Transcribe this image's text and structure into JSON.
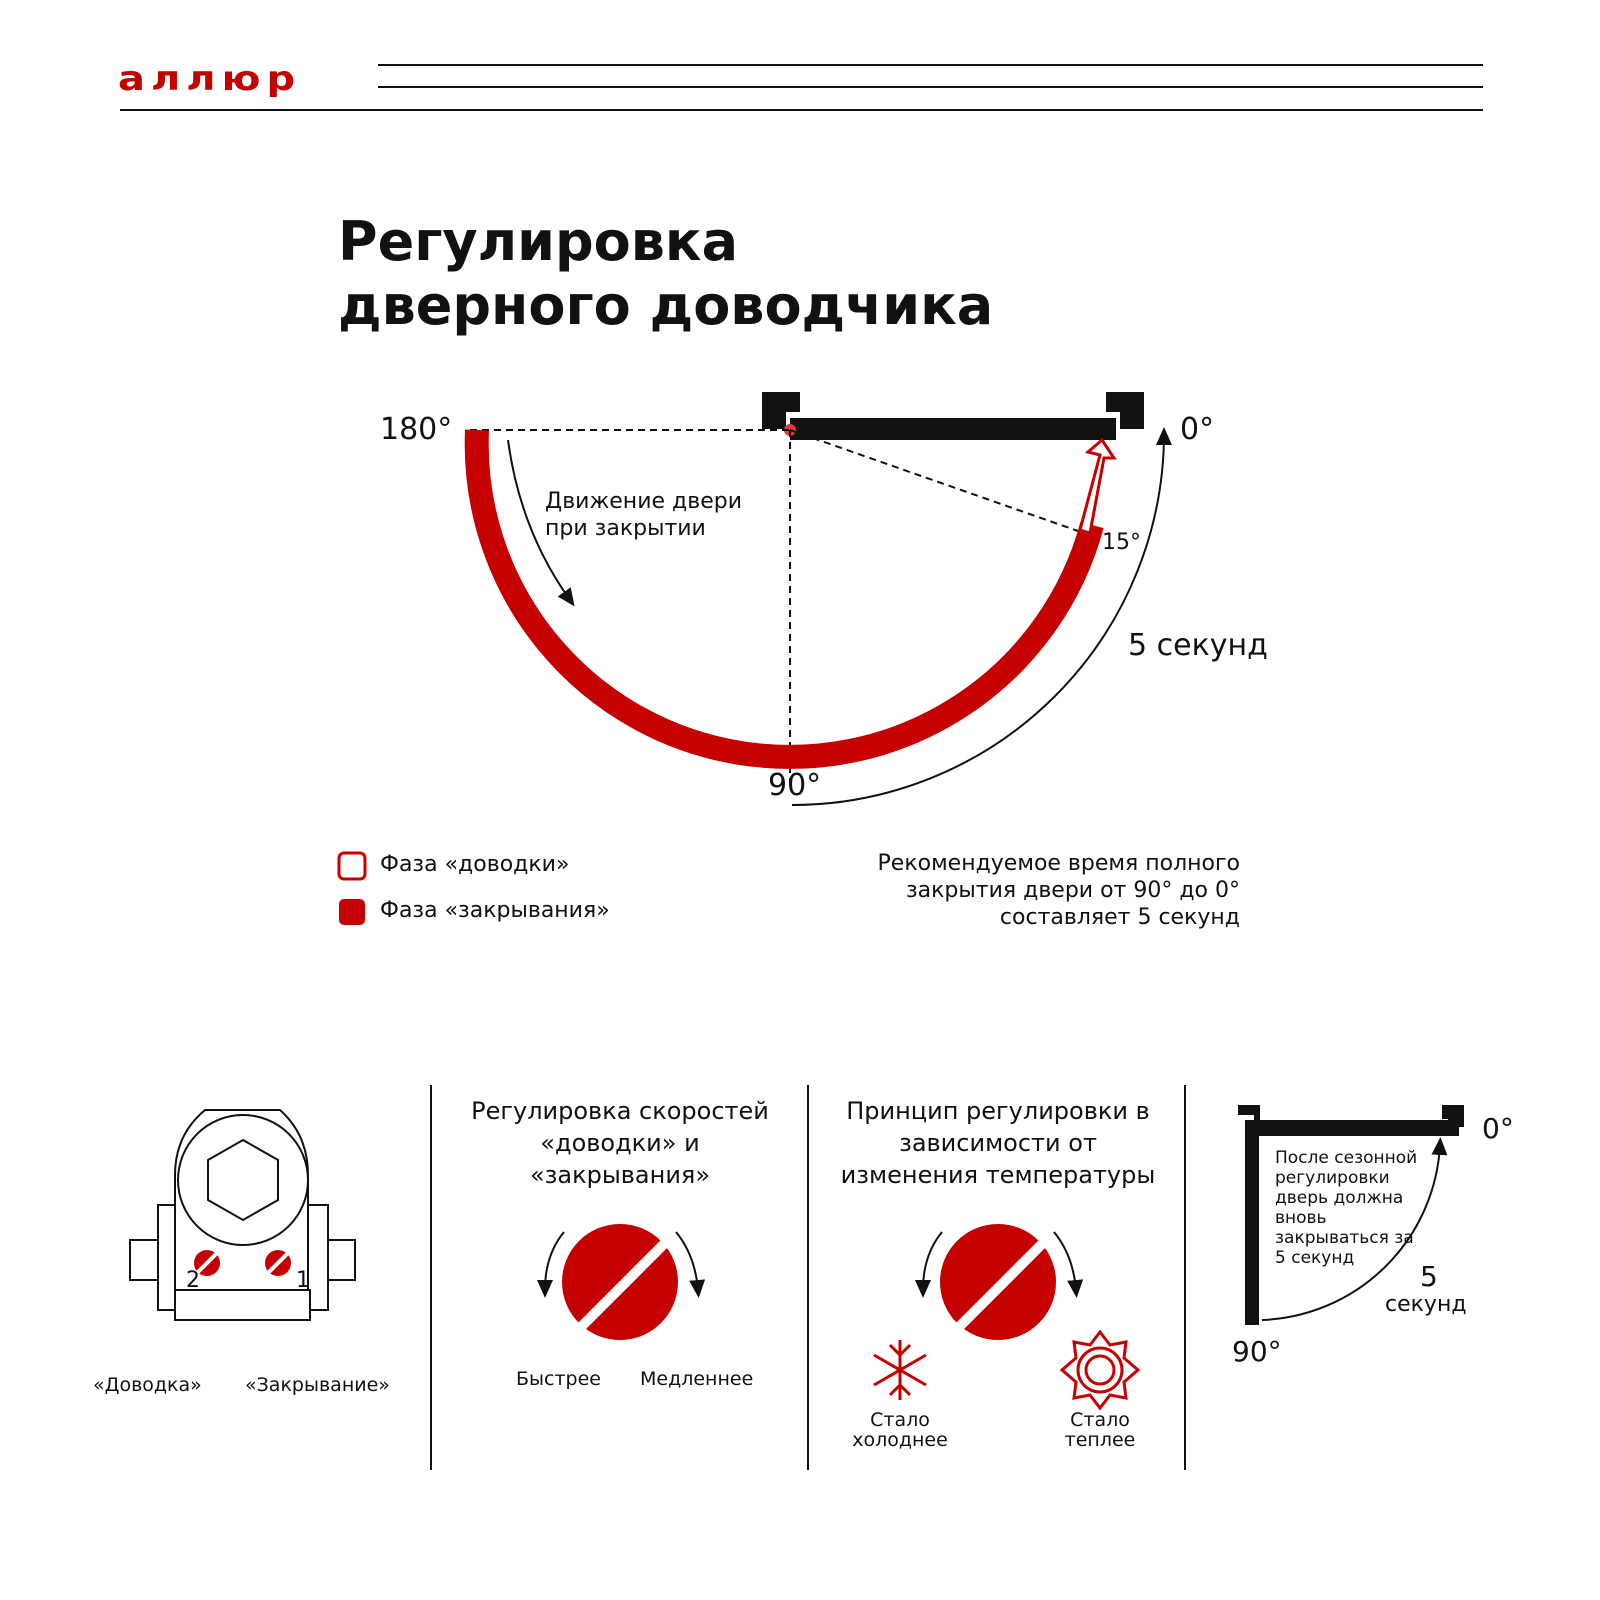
{
  "brand": {
    "logo": "аллюр",
    "color": "#c40000"
  },
  "title": "Регулировка дверного доводчика",
  "diagram": {
    "angle_180": "180°",
    "angle_0": "0°",
    "angle_90": "90°",
    "angle_15": "15°",
    "movement_label": "Движение двери при закрытии",
    "time_label": "5 секунд"
  },
  "legend": [
    {
      "label": "Фаза «доводки»",
      "style": "outline"
    },
    {
      "label": "Фаза «закрывания»",
      "style": "filled"
    }
  ],
  "recommendation": "Рекомендуемое время полного закрытия двери от 90° до 0° составляет 5 секунд",
  "panels": {
    "closer": {
      "screw_1": "1",
      "screw_2": "2",
      "label_left": "«Доводка»",
      "label_right": "«Закрывание»"
    },
    "speed": {
      "title": "Регулировка скоростей «доводки» и «закрывания»",
      "faster": "Быстрее",
      "slower": "Медленнее"
    },
    "temperature": {
      "title": "Принцип регулировки в зависимости от изменения температуры",
      "colder": "Стало холоднее",
      "warmer": "Стало теплее"
    },
    "seasonal": {
      "note": "После сезонной регулировки дверь должна вновь закрываться за 5 секунд",
      "angle_0": "0°",
      "angle_90": "90°",
      "time_number": "5",
      "time_unit": "секунд"
    }
  }
}
